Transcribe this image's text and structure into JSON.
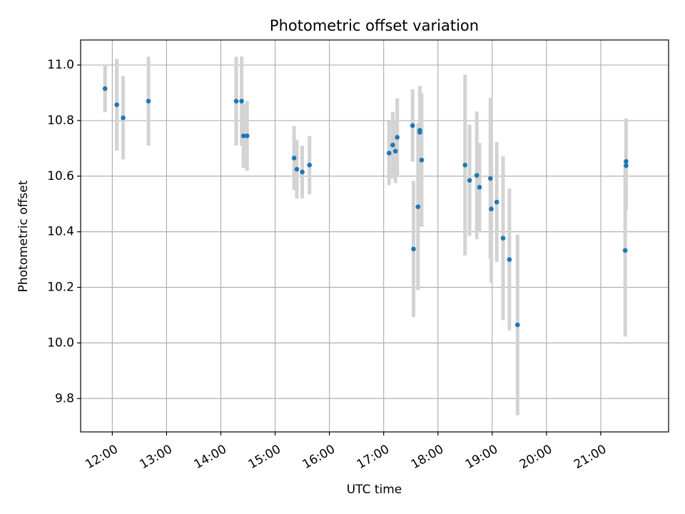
{
  "chart_data": {
    "type": "scatter",
    "title": "Photometric offset variation",
    "xlabel": "UTC time",
    "ylabel": "Photometric offset",
    "x_ticks": [
      "12:00",
      "13:00",
      "14:00",
      "15:00",
      "16:00",
      "17:00",
      "18:00",
      "19:00",
      "20:00",
      "21:00"
    ],
    "xlim": [
      "11:25",
      "22:15"
    ],
    "ylim": [
      9.68,
      11.09
    ],
    "y_ticks": [
      9.8,
      10.0,
      10.2,
      10.4,
      10.6,
      10.8,
      11.0
    ],
    "grid": true,
    "errorbar_color": "#d3d3d3",
    "marker_color": "#1f77b4",
    "points": [
      {
        "x": "11:52",
        "y": 10.915,
        "err": 0.085
      },
      {
        "x": "12:05",
        "y": 10.857,
        "err": 0.165
      },
      {
        "x": "12:12",
        "y": 10.81,
        "err": 0.15
      },
      {
        "x": "12:40",
        "y": 10.87,
        "err": 0.16
      },
      {
        "x": "14:17",
        "y": 10.87,
        "err": 0.16
      },
      {
        "x": "14:23",
        "y": 10.87,
        "err": 0.16
      },
      {
        "x": "14:25",
        "y": 10.745,
        "err": 0.115
      },
      {
        "x": "14:29",
        "y": 10.745,
        "err": 0.125
      },
      {
        "x": "15:21",
        "y": 10.665,
        "err": 0.115
      },
      {
        "x": "15:24",
        "y": 10.625,
        "err": 0.105
      },
      {
        "x": "15:30",
        "y": 10.615,
        "err": 0.095
      },
      {
        "x": "15:38",
        "y": 10.64,
        "err": 0.105
      },
      {
        "x": "17:06",
        "y": 10.683,
        "err": 0.115
      },
      {
        "x": "17:10",
        "y": 10.712,
        "err": 0.12
      },
      {
        "x": "17:13",
        "y": 10.69,
        "err": 0.115
      },
      {
        "x": "17:15",
        "y": 10.74,
        "err": 0.14
      },
      {
        "x": "17:32",
        "y": 10.782,
        "err": 0.13
      },
      {
        "x": "17:33",
        "y": 10.338,
        "err": 0.245
      },
      {
        "x": "17:38",
        "y": 10.49,
        "err": 0.3
      },
      {
        "x": "17:40",
        "y": 10.765,
        "err": 0.16
      },
      {
        "x": "17:40",
        "y": 10.758,
        "err": 0.15
      },
      {
        "x": "17:42",
        "y": 10.658,
        "err": 0.24
      },
      {
        "x": "18:30",
        "y": 10.64,
        "err": 0.325
      },
      {
        "x": "18:35",
        "y": 10.585,
        "err": 0.2
      },
      {
        "x": "18:43",
        "y": 10.603,
        "err": 0.23
      },
      {
        "x": "18:46",
        "y": 10.56,
        "err": 0.16
      },
      {
        "x": "18:58",
        "y": 10.592,
        "err": 0.29
      },
      {
        "x": "18:59",
        "y": 10.482,
        "err": 0.265
      },
      {
        "x": "19:05",
        "y": 10.507,
        "err": 0.215
      },
      {
        "x": "19:12",
        "y": 10.377,
        "err": 0.295
      },
      {
        "x": "19:19",
        "y": 10.3,
        "err": 0.255
      },
      {
        "x": "19:28",
        "y": 10.065,
        "err": 0.325
      },
      {
        "x": "21:27",
        "y": 10.333,
        "err": 0.31
      },
      {
        "x": "21:28",
        "y": 10.653,
        "err": 0.155
      },
      {
        "x": "21:28",
        "y": 10.638,
        "err": 0.16
      }
    ]
  }
}
